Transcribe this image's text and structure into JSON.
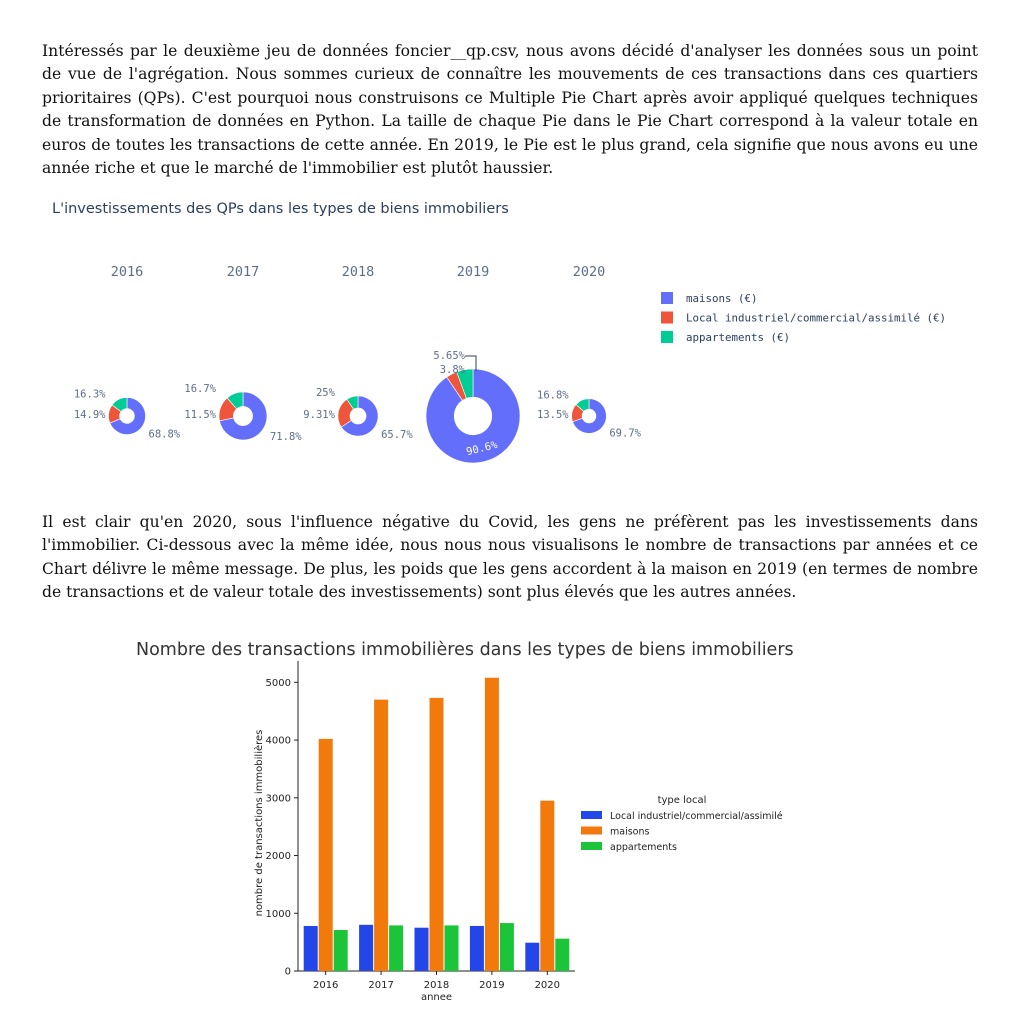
{
  "paragraphs": {
    "p1": "Intéressés par le deuxième jeu de données foncier__qp.csv, nous avons décidé d'analyser les données sous un point de vue de l'agrégation. Nous sommes curieux de connaître les mouvements de ces transactions dans ces quartiers prioritaires (QPs). C'est pourquoi nous construisons ce Multiple Pie Chart après avoir appliqué quelques techniques de transformation de données en Python. La taille de chaque Pie dans le Pie Chart correspond à la valeur totale en euros de toutes les transactions de cette année. En 2019, le Pie est le plus grand, cela signifie que nous avons eu une année riche et que le marché de l'immobilier est plutôt haussier.",
    "p2": "Il est clair qu'en 2020, sous l'influence négative du Covid, les gens ne préfèrent pas les investissements dans l'immobilier. Ci-dessous avec la même idée, nous nous nous visualisons le nombre de transactions par années et ce Chart délivre le même message. De plus, les poids que les gens accordent à la maison en 2019 (en termes de nombre de transactions et de valeur totale des investissements) sont plus élevés que les autres années."
  },
  "chart_data": [
    {
      "type": "pie",
      "title": "L'investissements des QPs dans les types de biens immobiliers",
      "legend_position": "right",
      "series": [
        {
          "name": "maisons (€)",
          "color": "#636efa"
        },
        {
          "name": "Local industriel/commercial/assimilé (€)",
          "color": "#ef553b"
        },
        {
          "name": "appartements (€)",
          "color": "#00cc96"
        }
      ],
      "pies": [
        {
          "label": "2016",
          "values": [
            68.8,
            16.3,
            14.9
          ],
          "value_labels": [
            "68.8%",
            "16.3%",
            "14.9%"
          ],
          "relative_size": 0.27
        },
        {
          "label": "2017",
          "values": [
            71.8,
            16.7,
            11.5
          ],
          "value_labels": [
            "71.8%",
            "16.7%",
            "11.5%"
          ],
          "relative_size": 0.41
        },
        {
          "label": "2018",
          "values": [
            65.7,
            25,
            9.31
          ],
          "value_labels": [
            "65.7%",
            "25%",
            "9.31%"
          ],
          "relative_size": 0.31
        },
        {
          "label": "2019",
          "values": [
            90.6,
            3.8,
            5.65
          ],
          "value_labels": [
            "90.6%",
            "3.8%",
            "5.65%"
          ],
          "relative_size": 1.0
        },
        {
          "label": "2020",
          "values": [
            69.7,
            16.8,
            13.5
          ],
          "value_labels": [
            "69.7%",
            "16.8%",
            "13.5%"
          ],
          "relative_size": 0.24
        }
      ]
    },
    {
      "type": "bar",
      "title": "Nombre des transactions immobilières dans les types de biens immobiliers",
      "xlabel": "annee",
      "ylabel": "nombre de transactions immobilières",
      "categories": [
        "2016",
        "2017",
        "2018",
        "2019",
        "2020"
      ],
      "ylim": [
        0,
        5300
      ],
      "yticks": [
        0,
        1000,
        2000,
        3000,
        4000,
        5000
      ],
      "legend_title": "type local",
      "legend_position": "right",
      "series": [
        {
          "name": "Local industriel/commercial/assimilé",
          "color": "#2346e8",
          "values": [
            780,
            800,
            750,
            780,
            490
          ]
        },
        {
          "name": "maisons",
          "color": "#f27a0c",
          "values": [
            4020,
            4700,
            4730,
            5080,
            2950
          ]
        },
        {
          "name": "appartements",
          "color": "#1cc43a",
          "values": [
            710,
            790,
            790,
            830,
            560
          ]
        }
      ]
    }
  ]
}
